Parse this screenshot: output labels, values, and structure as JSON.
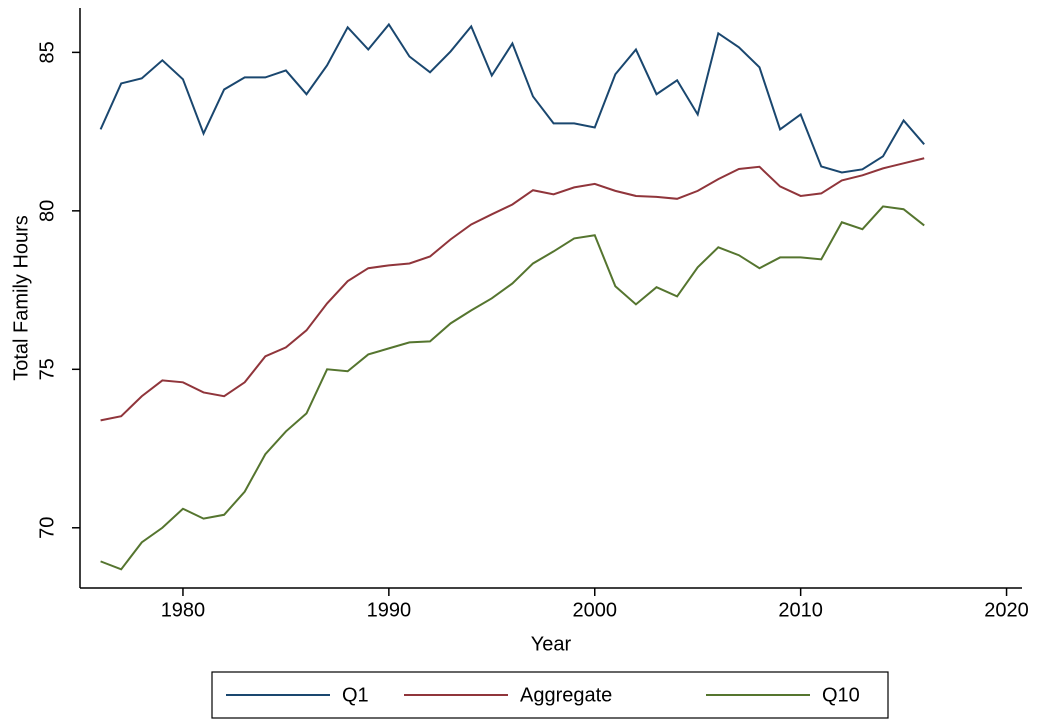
{
  "chart_data": {
    "type": "line",
    "xlabel": "Year",
    "ylabel": "Total Family Hours",
    "x": [
      1976,
      1977,
      1978,
      1979,
      1980,
      1981,
      1982,
      1983,
      1984,
      1985,
      1986,
      1987,
      1988,
      1989,
      1990,
      1991,
      1992,
      1993,
      1994,
      1995,
      1996,
      1997,
      1998,
      1999,
      2000,
      2001,
      2002,
      2003,
      2004,
      2005,
      2006,
      2007,
      2008,
      2009,
      2010,
      2011,
      2012,
      2013,
      2014,
      2015,
      2016
    ],
    "series": [
      {
        "name": "Q1",
        "color": "#1a476f",
        "values": [
          82.57,
          84.02,
          84.18,
          84.75,
          84.15,
          82.44,
          83.83,
          84.21,
          84.21,
          84.43,
          83.68,
          84.59,
          85.79,
          85.09,
          85.88,
          84.87,
          84.37,
          85.03,
          85.82,
          84.27,
          85.28,
          83.61,
          82.76,
          82.76,
          82.63,
          84.31,
          85.09,
          83.68,
          84.12,
          83.04,
          85.6,
          85.16,
          84.53,
          82.57,
          83.04,
          81.4,
          81.21,
          81.31,
          81.72,
          82.85,
          82.1
        ]
      },
      {
        "name": "Aggregate",
        "color": "#90353b",
        "values": [
          73.39,
          73.52,
          74.15,
          74.65,
          74.59,
          74.27,
          74.15,
          74.59,
          75.41,
          75.69,
          76.23,
          77.08,
          77.78,
          78.19,
          78.28,
          78.34,
          78.56,
          79.1,
          79.57,
          79.89,
          80.2,
          80.65,
          80.52,
          80.74,
          80.85,
          80.63,
          80.47,
          80.44,
          80.38,
          80.63,
          81.0,
          81.32,
          81.39,
          80.77,
          80.47,
          80.55,
          80.96,
          81.12,
          81.34,
          81.5,
          81.66
        ]
      },
      {
        "name": "Q10",
        "color": "#55752f",
        "values": [
          68.94,
          68.69,
          69.54,
          70.0,
          70.6,
          70.29,
          70.41,
          71.14,
          72.32,
          73.04,
          73.61,
          75.0,
          74.94,
          75.47,
          75.66,
          75.85,
          75.88,
          76.45,
          76.86,
          77.24,
          77.71,
          78.34,
          78.72,
          79.13,
          79.23,
          77.62,
          77.05,
          77.59,
          77.3,
          78.22,
          78.85,
          78.6,
          78.19,
          78.53,
          78.53,
          78.47,
          79.64,
          79.42,
          80.14,
          80.05,
          79.54
        ]
      }
    ],
    "xlim": [
      1975,
      2020.75
    ],
    "xticks": [
      1980,
      1990,
      2000,
      2010,
      2020
    ],
    "ylim": [
      68.1,
      86.4
    ],
    "yticks": [
      70,
      75,
      80,
      85
    ],
    "legend": "bottom"
  }
}
